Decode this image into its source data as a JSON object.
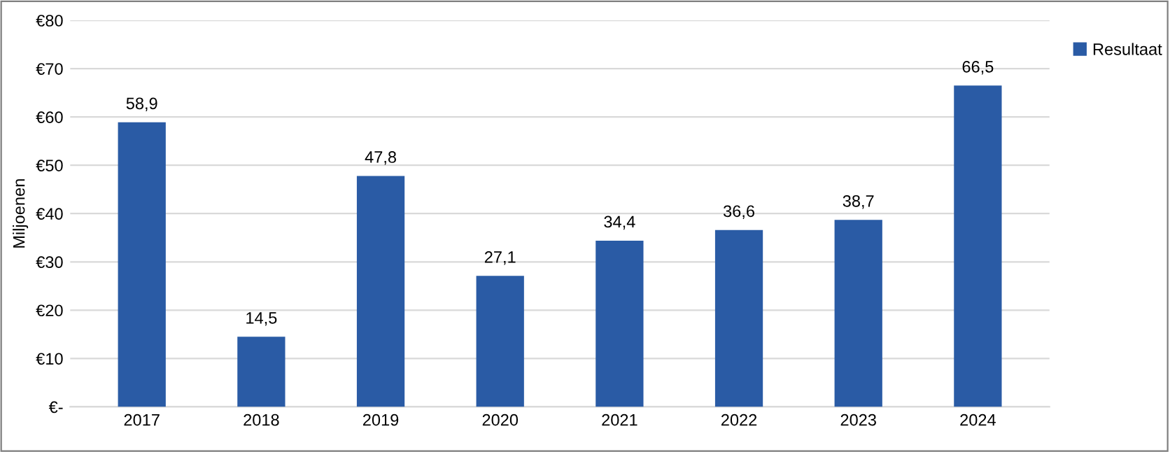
{
  "chart_data": {
    "type": "bar",
    "ylabel": "Miljoenen",
    "categories": [
      "2017",
      "2018",
      "2019",
      "2020",
      "2021",
      "2022",
      "2023",
      "2024"
    ],
    "series": [
      {
        "name": "Resultaat",
        "color": "#2a5ba5",
        "values": [
          58.9,
          14.5,
          47.8,
          27.1,
          34.4,
          36.6,
          38.7,
          66.5
        ],
        "value_labels": [
          "58,9",
          "14,5",
          "47,8",
          "27,1",
          "34,4",
          "36,6",
          "38,7",
          "66,5"
        ]
      }
    ],
    "ylim": [
      0,
      80
    ],
    "yticks": [
      {
        "value": 0,
        "label": "€-"
      },
      {
        "value": 10,
        "label": "€10"
      },
      {
        "value": 20,
        "label": "€20"
      },
      {
        "value": 30,
        "label": "€30"
      },
      {
        "value": 40,
        "label": "€40"
      },
      {
        "value": 50,
        "label": "€50"
      },
      {
        "value": 60,
        "label": "€60"
      },
      {
        "value": 70,
        "label": "€70"
      },
      {
        "value": 80,
        "label": "€80"
      }
    ],
    "grid": "y",
    "legend": "top right"
  }
}
